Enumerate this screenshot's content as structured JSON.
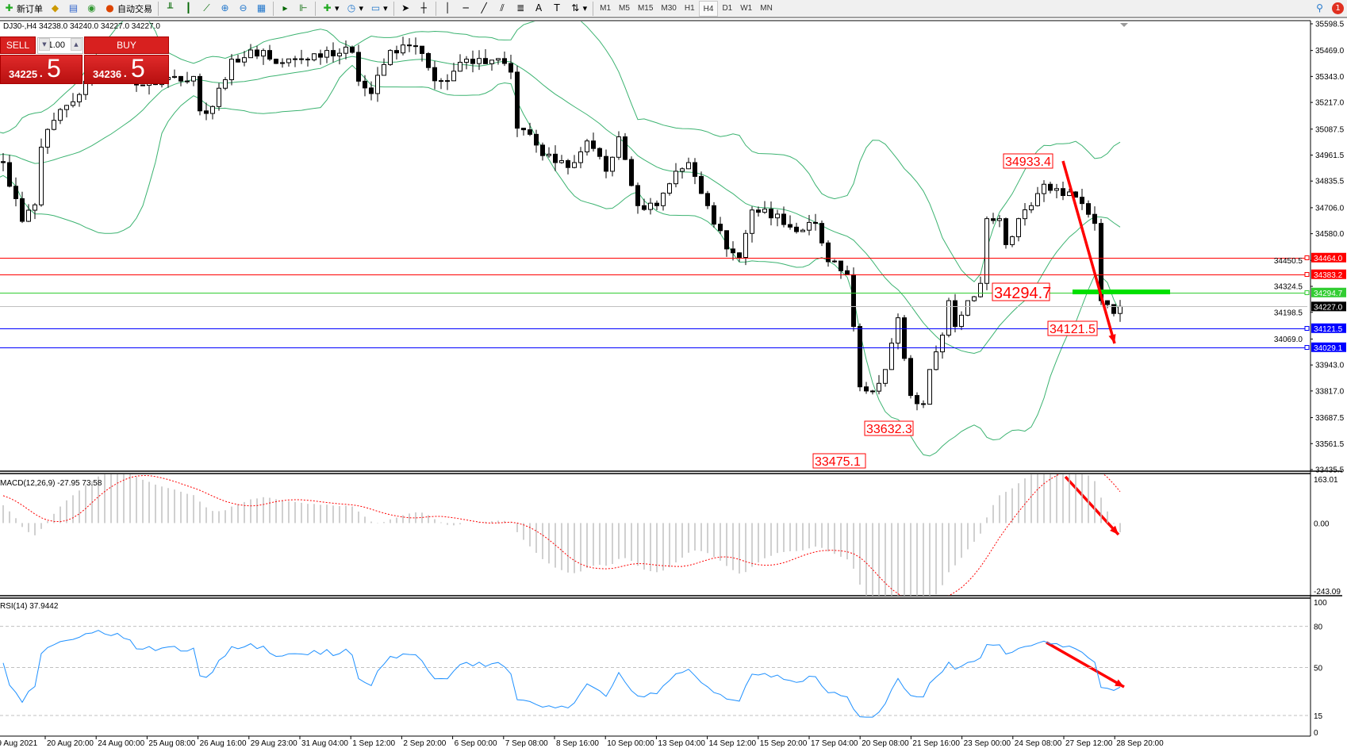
{
  "toolbar": {
    "new_order": "新订单",
    "auto_trading": "自动交易",
    "timeframes": [
      "M1",
      "M5",
      "M15",
      "M30",
      "H1",
      "H4",
      "D1",
      "W1",
      "MN"
    ],
    "active_timeframe": "H4",
    "notification_count": "1"
  },
  "symbol_header": "DJ30-,H4  34238.0 34240.0 34227.0 34227.0",
  "trade_panel": {
    "sell_label": "SELL",
    "buy_label": "BUY",
    "lot": "1.00",
    "sell_main": "34225",
    "sell_big": "5",
    "buy_main": "34236",
    "buy_big": "5",
    "dot": "."
  },
  "price_axis": [
    "35598.5",
    "35469.0",
    "35343.0",
    "35217.0",
    "35087.5",
    "34961.5",
    "34835.5",
    "34706.0",
    "34580.0",
    "34450.5",
    "34324.5",
    "34198.5",
    "34069.0",
    "33943.0",
    "33817.0",
    "33687.5",
    "33561.5",
    "33435.5"
  ],
  "levels": [
    {
      "price": "34464.0",
      "color": "#ff0000"
    },
    {
      "price": "34383.2",
      "color": "#ff0000"
    },
    {
      "price": "34294.7",
      "color": "#32cd32"
    },
    {
      "price": "34227.0",
      "color": "#000000",
      "line": "#c0c0c0"
    },
    {
      "price": "34121.5",
      "color": "#0000ff"
    },
    {
      "price": "34029.1",
      "color": "#0000ff"
    }
  ],
  "annotations": [
    "34933.4",
    "34294.7",
    "34121.5",
    "33632.3",
    "33475.1"
  ],
  "macd": {
    "label": "MACD(12,26,9) -27.95 73.58",
    "ticks": [
      "163.01",
      "0.00",
      "-243.09"
    ]
  },
  "rsi": {
    "label": "RSI(14) 37.9442",
    "ticks": [
      "100",
      "80",
      "50",
      "15",
      "0"
    ]
  },
  "time_axis": [
    "19 Aug 2021",
    "20 Aug 20:00",
    "24 Aug 00:00",
    "25 Aug 08:00",
    "26 Aug 16:00",
    "29 Aug 23:00",
    "31 Aug 04:00",
    "1 Sep 12:00",
    "2 Sep 20:00",
    "6 Sep 00:00",
    "7 Sep 08:00",
    "8 Sep 16:00",
    "10 Sep 00:00",
    "13 Sep 04:00",
    "14 Sep 12:00",
    "15 Sep 20:00",
    "17 Sep 04:00",
    "20 Sep 08:00",
    "21 Sep 16:00",
    "23 Sep 00:00",
    "24 Sep 08:00",
    "27 Sep 12:00",
    "28 Sep 20:00"
  ],
  "colors": {
    "bands": "#3cb371",
    "macd_hist": "#c0c0c0",
    "macd_signal": "#ff0000",
    "rsi": "#1e90ff",
    "arrow": "#ff0000",
    "buy_sell": "#d8201f"
  },
  "price_path": [
    [
      -40,
      34600
    ],
    [
      -20,
      34850
    ],
    [
      -8,
      35050
    ],
    [
      0,
      34925
    ],
    [
      3,
      34640
    ],
    [
      5,
      34720
    ],
    [
      6,
      35000
    ],
    [
      8,
      35130
    ],
    [
      11,
      35220
    ],
    [
      13,
      35320
    ],
    [
      15,
      35385
    ],
    [
      19,
      35364
    ],
    [
      22,
      35300
    ],
    [
      27,
      35343
    ],
    [
      30,
      35343
    ],
    [
      31,
      35176
    ],
    [
      33,
      35197
    ],
    [
      36,
      35427
    ],
    [
      41,
      35469
    ],
    [
      43,
      35406
    ],
    [
      47,
      35427
    ],
    [
      51,
      35469
    ],
    [
      55,
      35460
    ],
    [
      56,
      35320
    ],
    [
      58,
      35260
    ],
    [
      61,
      35469
    ],
    [
      65,
      35490
    ],
    [
      68,
      35322
    ],
    [
      70,
      35322
    ],
    [
      73,
      35427
    ],
    [
      79,
      35406
    ],
    [
      80,
      35364
    ],
    [
      81,
      35092
    ],
    [
      84,
      35010
    ],
    [
      87,
      34925
    ],
    [
      90,
      34925
    ],
    [
      92,
      35030
    ],
    [
      95,
      34883
    ],
    [
      97,
      35050
    ],
    [
      100,
      34716
    ],
    [
      103,
      34716
    ],
    [
      106,
      34883
    ],
    [
      108,
      34925
    ],
    [
      111,
      34716
    ],
    [
      114,
      34506
    ],
    [
      116,
      34465
    ],
    [
      118,
      34695
    ],
    [
      122,
      34675
    ],
    [
      125,
      34590
    ],
    [
      128,
      34630
    ],
    [
      130,
      34444
    ],
    [
      133,
      34381
    ],
    [
      134,
      34130
    ],
    [
      135,
      33837
    ],
    [
      137,
      33816
    ],
    [
      139,
      33921
    ],
    [
      141,
      34172
    ],
    [
      143,
      33795
    ],
    [
      145,
      33753
    ],
    [
      146,
      33921
    ],
    [
      148,
      34088
    ],
    [
      149,
      34255
    ],
    [
      150,
      34130
    ],
    [
      152,
      34255
    ],
    [
      154,
      34339
    ],
    [
      155,
      34653
    ],
    [
      157,
      34653
    ],
    [
      158,
      34527
    ],
    [
      160,
      34653
    ],
    [
      162,
      34716
    ],
    [
      164,
      34820
    ],
    [
      166,
      34799
    ],
    [
      169,
      34757
    ],
    [
      171,
      34674
    ],
    [
      172,
      34630
    ],
    [
      173,
      34255
    ],
    [
      175,
      34193
    ],
    [
      176,
      34227
    ]
  ]
}
